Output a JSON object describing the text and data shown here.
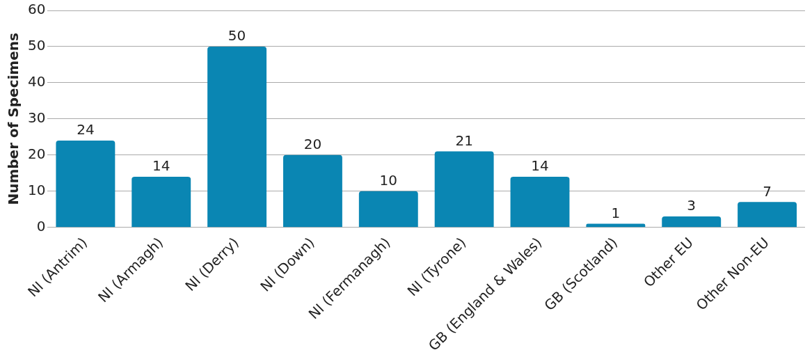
{
  "chart_data": {
    "type": "bar",
    "ylabel": "Number of Specimens",
    "categories": [
      "NI (Antrim)",
      "NI (Armagh)",
      "NI (Derry)",
      "NI (Down)",
      "NI (Fermanagh)",
      "NI (Tyrone)",
      "GB (England & Wales)",
      "GB (Scotland)",
      "Other EU",
      "Other Non-EU"
    ],
    "values": [
      24,
      14,
      50,
      20,
      10,
      21,
      14,
      1,
      3,
      7
    ],
    "color": "#0a86b3",
    "ylim": [
      0,
      60
    ],
    "yticks": [
      0,
      10,
      20,
      30,
      40,
      50,
      60
    ],
    "grid": "y",
    "data_labels": true,
    "legend": false
  }
}
